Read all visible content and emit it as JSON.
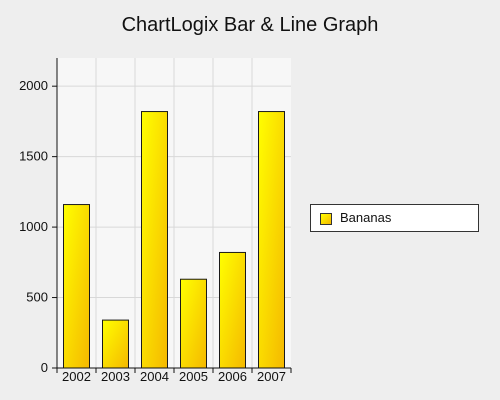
{
  "chart_data": {
    "type": "bar",
    "title": "ChartLogix Bar & Line Graph",
    "xlabel": "",
    "ylabel": "",
    "categories": [
      "2002",
      "2003",
      "2004",
      "2005",
      "2006",
      "2007"
    ],
    "series": [
      {
        "name": "Bananas",
        "values": [
          1160,
          340,
          1820,
          630,
          820,
          1820
        ]
      }
    ],
    "ylim": [
      0,
      2200
    ],
    "yticks": [
      0,
      500,
      1000,
      1500,
      2000
    ],
    "grid": true,
    "legend_position": "right",
    "colors": {
      "bar_top": "#ffff00",
      "bar_bottom": "#f5b800",
      "bar_edge": "#1a1a1a",
      "plot_background": "#f7f7f7",
      "grid": "#d8d8d8",
      "page_background": "#eeeeee"
    }
  }
}
